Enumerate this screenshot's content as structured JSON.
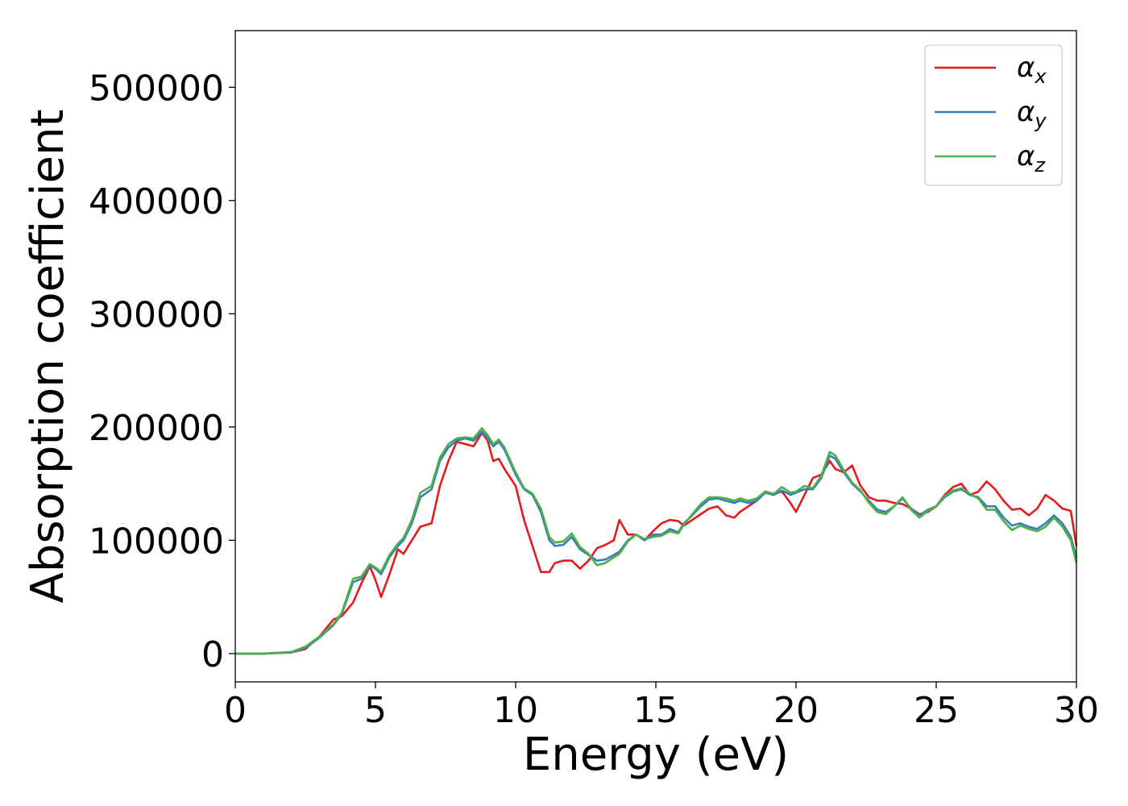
{
  "chart_data": {
    "type": "line",
    "title": "",
    "xlabel": "Energy (eV)",
    "ylabel": "Absorption coefficient",
    "xlim": [
      0,
      30
    ],
    "ylim": [
      -25000,
      550000
    ],
    "grid": false,
    "legend_placement": "top-right",
    "x_ticks": [
      0,
      5,
      10,
      15,
      20,
      25,
      30
    ],
    "x_tick_labels": [
      "0",
      "5",
      "10",
      "15",
      "20",
      "25",
      "30"
    ],
    "y_ticks": [
      0,
      100000,
      200000,
      300000,
      400000,
      500000
    ],
    "y_tick_labels": [
      "0",
      "100000",
      "200000",
      "300000",
      "400000",
      "500000"
    ],
    "series": [
      {
        "name": "αx",
        "symbol": "α",
        "subscript": "x",
        "color": "#e41a1c",
        "x": [
          0,
          1,
          2,
          2.5,
          3,
          3.5,
          3.8,
          4.2,
          4.5,
          4.8,
          5.0,
          5.2,
          5.5,
          5.8,
          6.0,
          6.3,
          6.6,
          7.0,
          7.3,
          7.6,
          7.9,
          8.2,
          8.5,
          8.8,
          9.0,
          9.2,
          9.4,
          9.6,
          10.0,
          10.3,
          10.6,
          10.9,
          11.2,
          11.4,
          11.7,
          12.0,
          12.3,
          12.6,
          12.9,
          13.2,
          13.5,
          13.7,
          14.0,
          14.3,
          14.6,
          14.9,
          15.2,
          15.5,
          15.8,
          16.0,
          16.3,
          16.6,
          16.9,
          17.2,
          17.5,
          17.8,
          18.0,
          18.3,
          18.6,
          18.9,
          19.2,
          19.5,
          19.8,
          20.0,
          20.3,
          20.6,
          20.9,
          21.2,
          21.4,
          21.7,
          22.0,
          22.3,
          22.6,
          22.9,
          23.2,
          23.5,
          23.8,
          24.1,
          24.4,
          24.7,
          25.0,
          25.3,
          25.6,
          25.9,
          26.2,
          26.5,
          26.8,
          27.1,
          27.4,
          27.7,
          28.0,
          28.3,
          28.6,
          28.9,
          29.2,
          29.5,
          29.8,
          30.0
        ],
        "y": [
          0,
          0,
          1000,
          4000,
          15000,
          30000,
          33000,
          45000,
          62000,
          77000,
          65000,
          50000,
          70000,
          92000,
          88000,
          100000,
          112000,
          115000,
          148000,
          170000,
          187000,
          185000,
          183000,
          195000,
          188000,
          170000,
          172000,
          163000,
          148000,
          118000,
          95000,
          72000,
          72000,
          80000,
          82000,
          82000,
          75000,
          82000,
          93000,
          96000,
          100000,
          118000,
          105000,
          105000,
          100000,
          108000,
          115000,
          118000,
          117000,
          113000,
          118000,
          123000,
          128000,
          130000,
          122000,
          120000,
          125000,
          130000,
          135000,
          143000,
          141000,
          143000,
          133000,
          125000,
          140000,
          155000,
          158000,
          170000,
          163000,
          160000,
          166000,
          148000,
          138000,
          135000,
          135000,
          133000,
          132000,
          128000,
          123000,
          125000,
          130000,
          140000,
          147000,
          150000,
          140000,
          143000,
          152000,
          145000,
          135000,
          127000,
          128000,
          122000,
          128000,
          140000,
          135000,
          128000,
          126000,
          95000
        ]
      },
      {
        "name": "αy",
        "symbol": "α",
        "subscript": "y",
        "color": "#377eb8",
        "x": [
          0,
          1,
          2,
          2.5,
          3,
          3.5,
          3.8,
          4.2,
          4.5,
          4.8,
          5.0,
          5.2,
          5.5,
          5.8,
          6.0,
          6.3,
          6.6,
          7.0,
          7.3,
          7.6,
          7.9,
          8.2,
          8.5,
          8.8,
          9.0,
          9.2,
          9.4,
          9.6,
          10.0,
          10.3,
          10.6,
          10.9,
          11.2,
          11.4,
          11.7,
          12.0,
          12.3,
          12.6,
          12.9,
          13.2,
          13.5,
          13.7,
          14.0,
          14.3,
          14.6,
          14.9,
          15.2,
          15.5,
          15.8,
          16.0,
          16.3,
          16.6,
          16.9,
          17.2,
          17.5,
          17.8,
          18.0,
          18.3,
          18.6,
          18.9,
          19.2,
          19.5,
          19.8,
          20.0,
          20.3,
          20.6,
          20.9,
          21.2,
          21.4,
          21.7,
          22.0,
          22.3,
          22.6,
          22.9,
          23.2,
          23.5,
          23.8,
          24.1,
          24.4,
          24.7,
          25.0,
          25.3,
          25.6,
          25.9,
          26.2,
          26.5,
          26.8,
          27.1,
          27.4,
          27.7,
          28.0,
          28.3,
          28.6,
          28.9,
          29.2,
          29.5,
          29.8,
          30.0
        ],
        "y": [
          0,
          0,
          1000,
          5000,
          14000,
          25000,
          35000,
          63000,
          66000,
          78000,
          75000,
          70000,
          85000,
          95000,
          100000,
          115000,
          138000,
          145000,
          170000,
          182000,
          188000,
          190000,
          188000,
          196000,
          190000,
          183000,
          187000,
          180000,
          158000,
          145000,
          140000,
          125000,
          100000,
          95000,
          96000,
          103000,
          92000,
          87000,
          82000,
          83000,
          87000,
          90000,
          100000,
          105000,
          100000,
          105000,
          105000,
          110000,
          107000,
          115000,
          122000,
          130000,
          136000,
          137000,
          135000,
          133000,
          135000,
          133000,
          135000,
          142000,
          140000,
          144000,
          140000,
          142000,
          145000,
          145000,
          155000,
          175000,
          172000,
          160000,
          150000,
          143000,
          135000,
          127000,
          125000,
          130000,
          137000,
          128000,
          122000,
          127000,
          130000,
          138000,
          143000,
          145000,
          140000,
          138000,
          130000,
          130000,
          120000,
          113000,
          115000,
          112000,
          110000,
          115000,
          122000,
          115000,
          103000,
          85000
        ]
      },
      {
        "name": "αz",
        "symbol": "α",
        "subscript": "z",
        "color": "#4daf4a",
        "x": [
          0,
          1,
          2,
          2.5,
          3,
          3.5,
          3.8,
          4.2,
          4.5,
          4.8,
          5.0,
          5.2,
          5.5,
          5.8,
          6.0,
          6.3,
          6.6,
          7.0,
          7.3,
          7.6,
          7.9,
          8.2,
          8.5,
          8.8,
          9.0,
          9.2,
          9.4,
          9.6,
          10.0,
          10.3,
          10.6,
          10.9,
          11.2,
          11.4,
          11.7,
          12.0,
          12.3,
          12.6,
          12.9,
          13.2,
          13.5,
          13.7,
          14.0,
          14.3,
          14.6,
          14.9,
          15.2,
          15.5,
          15.8,
          16.0,
          16.3,
          16.6,
          16.9,
          17.2,
          17.5,
          17.8,
          18.0,
          18.3,
          18.6,
          18.9,
          19.2,
          19.5,
          19.8,
          20.0,
          20.3,
          20.6,
          20.9,
          21.2,
          21.4,
          21.7,
          22.0,
          22.3,
          22.6,
          22.9,
          23.2,
          23.5,
          23.8,
          24.1,
          24.4,
          24.7,
          25.0,
          25.3,
          25.6,
          25.9,
          26.2,
          26.5,
          26.8,
          27.1,
          27.4,
          27.7,
          28.0,
          28.3,
          28.6,
          28.9,
          29.2,
          29.5,
          29.8,
          30.0
        ],
        "y": [
          0,
          0,
          1500,
          6000,
          15000,
          26000,
          36000,
          66000,
          68000,
          79000,
          76000,
          72000,
          87000,
          97000,
          102000,
          118000,
          142000,
          148000,
          173000,
          185000,
          190000,
          191000,
          190000,
          199000,
          193000,
          185000,
          189000,
          182000,
          160000,
          146000,
          141000,
          128000,
          103000,
          98000,
          99000,
          106000,
          94000,
          88000,
          78000,
          80000,
          85000,
          88000,
          99000,
          105000,
          101000,
          103000,
          104000,
          108000,
          106000,
          114000,
          123000,
          132000,
          138000,
          138000,
          137000,
          135000,
          137000,
          135000,
          137000,
          143000,
          141000,
          147000,
          142000,
          143000,
          148000,
          146000,
          157000,
          178000,
          175000,
          162000,
          151000,
          144000,
          133000,
          125000,
          123000,
          130000,
          138000,
          127000,
          120000,
          126000,
          130000,
          139000,
          144000,
          146000,
          141000,
          137000,
          127000,
          127000,
          117000,
          109000,
          113000,
          110000,
          108000,
          112000,
          120000,
          112000,
          100000,
          80000
        ]
      }
    ]
  }
}
